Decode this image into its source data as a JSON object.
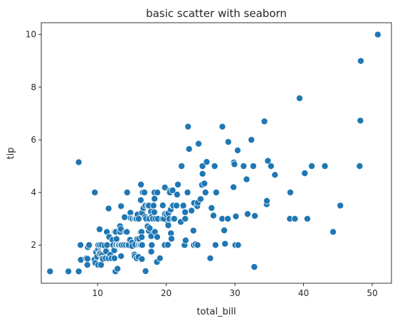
{
  "chart_data": {
    "type": "scatter",
    "title": "basic scatter with seaborn",
    "xlabel": "total_bill",
    "ylabel": "tip",
    "xlim": [
      1.8,
      52.8
    ],
    "ylim": [
      0.55,
      10.45
    ],
    "xticks": [
      10,
      20,
      30,
      40,
      50
    ],
    "yticks": [
      2,
      4,
      6,
      8,
      10
    ],
    "grid": false,
    "legend": "none",
    "color": "#1f77b4",
    "points": [
      [
        3.07,
        1.0
      ],
      [
        5.75,
        1.0
      ],
      [
        7.25,
        1.0
      ],
      [
        7.25,
        5.15
      ],
      [
        7.51,
        2.0
      ],
      [
        7.56,
        1.44
      ],
      [
        8.35,
        1.5
      ],
      [
        8.51,
        1.25
      ],
      [
        8.52,
        1.48
      ],
      [
        8.58,
        1.92
      ],
      [
        8.77,
        2.0
      ],
      [
        9.55,
        1.45
      ],
      [
        9.6,
        4.0
      ],
      [
        9.68,
        1.32
      ],
      [
        9.78,
        1.73
      ],
      [
        9.94,
        1.56
      ],
      [
        10.07,
        1.25
      ],
      [
        10.07,
        1.83
      ],
      [
        10.09,
        2.0
      ],
      [
        10.27,
        1.71
      ],
      [
        10.29,
        2.6
      ],
      [
        10.33,
        1.67
      ],
      [
        10.33,
        2.0
      ],
      [
        10.34,
        1.66
      ],
      [
        10.34,
        2.0
      ],
      [
        10.51,
        1.25
      ],
      [
        10.59,
        1.61
      ],
      [
        10.63,
        2.0
      ],
      [
        10.65,
        1.5
      ],
      [
        10.77,
        1.47
      ],
      [
        11.02,
        1.98
      ],
      [
        11.17,
        1.5
      ],
      [
        11.24,
        1.76
      ],
      [
        11.35,
        2.5
      ],
      [
        11.38,
        2.0
      ],
      [
        11.59,
        1.5
      ],
      [
        11.61,
        3.39
      ],
      [
        11.69,
        2.31
      ],
      [
        11.87,
        1.63
      ],
      [
        12.03,
        1.5
      ],
      [
        12.16,
        2.2
      ],
      [
        12.26,
        2.0
      ],
      [
        12.43,
        1.8
      ],
      [
        12.46,
        1.5
      ],
      [
        12.48,
        2.52
      ],
      [
        12.54,
        2.5
      ],
      [
        12.6,
        1.0
      ],
      [
        12.66,
        2.5
      ],
      [
        12.69,
        2.0
      ],
      [
        12.74,
        2.01
      ],
      [
        12.76,
        2.23
      ],
      [
        12.9,
        1.1
      ],
      [
        13.0,
        2.0
      ],
      [
        13.03,
        2.0
      ],
      [
        13.13,
        2.0
      ],
      [
        13.27,
        2.5
      ],
      [
        13.28,
        2.72
      ],
      [
        13.37,
        2.0
      ],
      [
        13.39,
        2.61
      ],
      [
        13.42,
        1.58
      ],
      [
        13.42,
        3.48
      ],
      [
        13.51,
        2.0
      ],
      [
        13.81,
        2.0
      ],
      [
        13.94,
        3.06
      ],
      [
        14.07,
        2.5
      ],
      [
        14.15,
        2.0
      ],
      [
        14.26,
        2.5
      ],
      [
        14.31,
        4.0
      ],
      [
        14.48,
        2.0
      ],
      [
        14.52,
        2.0
      ],
      [
        14.73,
        2.2
      ],
      [
        14.78,
        3.23
      ],
      [
        14.83,
        3.02
      ],
      [
        15.01,
        2.09
      ],
      [
        15.04,
        1.96
      ],
      [
        15.06,
        3.0
      ],
      [
        15.36,
        1.64
      ],
      [
        15.38,
        3.0
      ],
      [
        15.42,
        1.57
      ],
      [
        15.48,
        2.02
      ],
      [
        15.53,
        3.0
      ],
      [
        15.69,
        1.5
      ],
      [
        15.69,
        3.0
      ],
      [
        15.77,
        2.23
      ],
      [
        15.81,
        3.16
      ],
      [
        15.95,
        1.55
      ],
      [
        15.98,
        2.03
      ],
      [
        15.98,
        3.0
      ],
      [
        16.0,
        2.0
      ],
      [
        16.04,
        2.24
      ],
      [
        16.21,
        2.0
      ],
      [
        16.27,
        2.5
      ],
      [
        16.29,
        3.71
      ],
      [
        16.31,
        2.0
      ],
      [
        16.32,
        4.3
      ],
      [
        16.4,
        2.5
      ],
      [
        16.43,
        2.3
      ],
      [
        16.45,
        1.47
      ],
      [
        16.47,
        3.23
      ],
      [
        16.49,
        2.0
      ],
      [
        16.58,
        4.0
      ],
      [
        16.66,
        3.4
      ],
      [
        16.82,
        4.0
      ],
      [
        16.93,
        3.07
      ],
      [
        16.97,
        3.5
      ],
      [
        16.99,
        1.01
      ],
      [
        17.07,
        3.0
      ],
      [
        17.26,
        2.74
      ],
      [
        17.29,
        2.71
      ],
      [
        17.31,
        3.5
      ],
      [
        17.46,
        2.54
      ],
      [
        17.47,
        3.5
      ],
      [
        17.51,
        3.0
      ],
      [
        17.59,
        2.64
      ],
      [
        17.78,
        3.27
      ],
      [
        17.81,
        2.34
      ],
      [
        17.82,
        1.75
      ],
      [
        17.89,
        2.0
      ],
      [
        17.92,
        3.08
      ],
      [
        18.04,
        3.0
      ],
      [
        18.15,
        3.5
      ],
      [
        18.24,
        3.76
      ],
      [
        18.26,
        3.25
      ],
      [
        18.28,
        4.0
      ],
      [
        18.29,
        3.76
      ],
      [
        18.35,
        2.5
      ],
      [
        18.43,
        3.0
      ],
      [
        18.64,
        1.36
      ],
      [
        18.69,
        2.31
      ],
      [
        18.71,
        4.0
      ],
      [
        18.78,
        3.0
      ],
      [
        19.08,
        1.5
      ],
      [
        19.44,
        3.0
      ],
      [
        19.49,
        3.51
      ],
      [
        19.65,
        3.0
      ],
      [
        19.77,
        2.0
      ],
      [
        19.81,
        4.19
      ],
      [
        19.82,
        3.18
      ],
      [
        20.08,
        3.15
      ],
      [
        20.23,
        2.01
      ],
      [
        20.27,
        2.83
      ],
      [
        20.29,
        2.75
      ],
      [
        20.29,
        3.21
      ],
      [
        20.45,
        3.0
      ],
      [
        20.49,
        4.06
      ],
      [
        20.53,
        4.0
      ],
      [
        20.65,
        3.35
      ],
      [
        20.69,
        2.45
      ],
      [
        20.76,
        2.24
      ],
      [
        20.9,
        3.5
      ],
      [
        20.92,
        4.08
      ],
      [
        21.01,
        3.0
      ],
      [
        21.01,
        3.5
      ],
      [
        21.16,
        3.0
      ],
      [
        21.5,
        3.5
      ],
      [
        21.58,
        3.92
      ],
      [
        21.7,
        4.3
      ],
      [
        22.12,
        2.88
      ],
      [
        22.23,
        5.0
      ],
      [
        22.42,
        3.48
      ],
      [
        22.49,
        3.5
      ],
      [
        22.67,
        2.0
      ],
      [
        22.75,
        3.25
      ],
      [
        22.76,
        3.0
      ],
      [
        22.82,
        2.18
      ],
      [
        23.1,
        4.0
      ],
      [
        23.17,
        6.5
      ],
      [
        23.33,
        5.65
      ],
      [
        23.68,
        3.31
      ],
      [
        23.95,
        2.55
      ],
      [
        24.01,
        2.0
      ],
      [
        24.06,
        3.6
      ],
      [
        24.27,
        2.03
      ],
      [
        24.52,
        3.48
      ],
      [
        24.55,
        2.0
      ],
      [
        24.59,
        3.61
      ],
      [
        24.71,
        5.85
      ],
      [
        25.0,
        3.75
      ],
      [
        25.21,
        4.29
      ],
      [
        25.28,
        5.0
      ],
      [
        25.29,
        4.71
      ],
      [
        25.56,
        4.34
      ],
      [
        25.71,
        4.0
      ],
      [
        25.89,
        5.16
      ],
      [
        26.41,
        1.5
      ],
      [
        26.59,
        3.41
      ],
      [
        26.86,
        3.14
      ],
      [
        26.88,
        3.12
      ],
      [
        27.05,
        5.0
      ],
      [
        27.18,
        2.0
      ],
      [
        27.2,
        4.0
      ],
      [
        27.28,
        4.0
      ],
      [
        28.15,
        3.0
      ],
      [
        28.17,
        6.5
      ],
      [
        28.44,
        2.56
      ],
      [
        28.55,
        2.05
      ],
      [
        28.97,
        3.0
      ],
      [
        29.03,
        5.92
      ],
      [
        29.8,
        4.2
      ],
      [
        29.85,
        5.14
      ],
      [
        29.93,
        5.07
      ],
      [
        30.06,
        2.0
      ],
      [
        30.14,
        3.09
      ],
      [
        30.4,
        5.6
      ],
      [
        30.46,
        2.0
      ],
      [
        31.27,
        5.0
      ],
      [
        31.71,
        4.5
      ],
      [
        31.85,
        3.18
      ],
      [
        32.4,
        6.0
      ],
      [
        32.68,
        5.0
      ],
      [
        32.83,
        1.17
      ],
      [
        32.9,
        3.11
      ],
      [
        34.3,
        6.7
      ],
      [
        34.63,
        3.55
      ],
      [
        34.65,
        3.68
      ],
      [
        34.81,
        5.2
      ],
      [
        35.26,
        5.0
      ],
      [
        35.83,
        4.67
      ],
      [
        38.01,
        3.0
      ],
      [
        38.07,
        4.0
      ],
      [
        38.73,
        3.0
      ],
      [
        39.42,
        7.58
      ],
      [
        40.17,
        4.73
      ],
      [
        40.55,
        3.0
      ],
      [
        41.19,
        5.0
      ],
      [
        43.11,
        5.0
      ],
      [
        44.3,
        2.5
      ],
      [
        45.35,
        3.5
      ],
      [
        48.17,
        5.0
      ],
      [
        48.27,
        6.73
      ],
      [
        48.33,
        9.0
      ],
      [
        50.81,
        10.0
      ]
    ]
  }
}
